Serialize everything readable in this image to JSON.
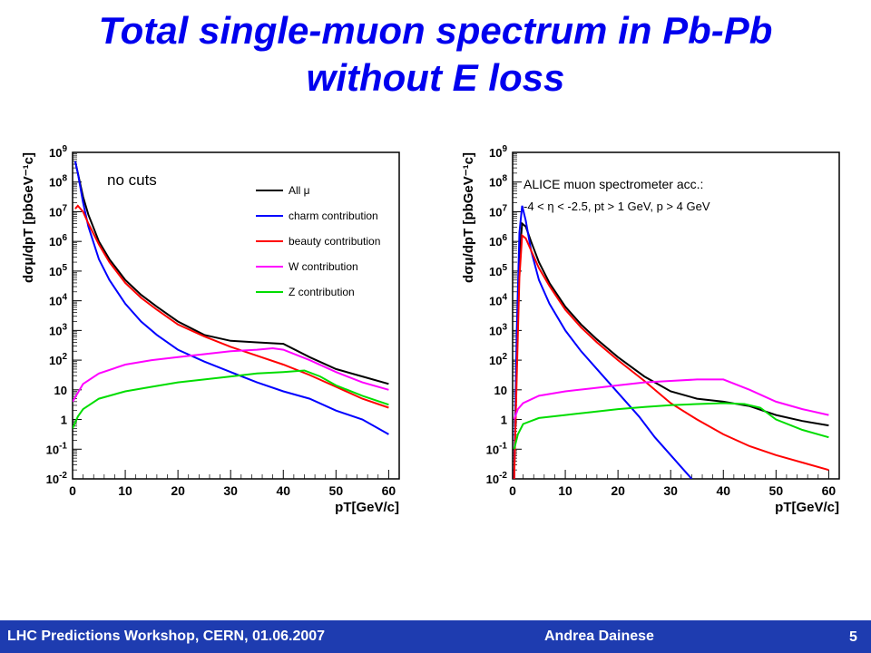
{
  "slide": {
    "title_line1": "Total single-muon spectrum in Pb-Pb",
    "title_line2": "without E loss",
    "page_number": "5",
    "colors": {
      "title": "#0000ee",
      "footer_bg": "#1e3cb0",
      "footer_text": "#ffffff"
    }
  },
  "footer": {
    "left": "LHC Predictions Workshop, CERN, 01.06.2007",
    "author": "Andrea Dainese"
  },
  "chart_data": [
    {
      "type": "line",
      "ylabel": "dσμ/dpT [pbGeV⁻¹c]",
      "xlabel": "pT[GeV/c]",
      "xlim": [
        0,
        62
      ],
      "ylim_log10": [
        -2,
        9
      ],
      "y_scale": "log",
      "xticks": [
        "0",
        "10",
        "20",
        "30",
        "40",
        "50",
        "60"
      ],
      "yticks": [
        "10^-2",
        "10^-1",
        "1",
        "10",
        "10^2",
        "10^3",
        "10^4",
        "10^5",
        "10^6",
        "10^7",
        "10^8",
        "10^9"
      ],
      "annotation": "no cuts",
      "legend_position": "top-right",
      "series": [
        {
          "name": "All μ",
          "color": "#000000",
          "x": [
            0.5,
            1,
            2,
            3,
            5,
            7,
            10,
            13,
            16,
            20,
            25,
            30,
            35,
            40,
            45,
            50,
            55,
            60
          ],
          "log10_y": [
            8.7,
            8.3,
            7.5,
            6.9,
            6.0,
            5.4,
            4.7,
            4.2,
            3.8,
            3.3,
            2.85,
            2.65,
            2.6,
            2.55,
            2.1,
            1.7,
            1.45,
            1.2
          ]
        },
        {
          "name": "charm contribution",
          "color": "#0000ff",
          "x": [
            0.5,
            1,
            2,
            3,
            5,
            7,
            10,
            13,
            16,
            20,
            25,
            30,
            35,
            40,
            45,
            50,
            55,
            60
          ],
          "log10_y": [
            8.7,
            8.3,
            7.3,
            6.5,
            5.4,
            4.7,
            3.9,
            3.3,
            2.85,
            2.35,
            1.95,
            1.6,
            1.25,
            0.95,
            0.7,
            0.3,
            0.0,
            -0.5
          ]
        },
        {
          "name": "beauty contribution",
          "color": "#ff0000",
          "x": [
            0.5,
            1,
            2,
            3,
            5,
            7,
            10,
            13,
            16,
            20,
            25,
            30,
            35,
            40,
            45,
            50,
            55,
            60
          ],
          "log10_y": [
            7.1,
            7.2,
            7.0,
            6.6,
            5.9,
            5.3,
            4.6,
            4.1,
            3.7,
            3.2,
            2.8,
            2.45,
            2.15,
            1.85,
            1.5,
            1.1,
            0.7,
            0.4
          ]
        },
        {
          "name": "W contribution",
          "color": "#ff00ff",
          "x": [
            0,
            1,
            2,
            5,
            10,
            15,
            20,
            25,
            30,
            35,
            38,
            40,
            45,
            50,
            55,
            60
          ],
          "log10_y": [
            0.6,
            0.9,
            1.2,
            1.55,
            1.85,
            2.0,
            2.1,
            2.2,
            2.3,
            2.35,
            2.4,
            2.35,
            2.0,
            1.6,
            1.25,
            1.0
          ]
        },
        {
          "name": "Z contribution",
          "color": "#00dd00",
          "x": [
            0,
            1,
            2,
            5,
            10,
            15,
            20,
            25,
            30,
            35,
            40,
            44,
            47,
            50,
            55,
            60
          ],
          "log10_y": [
            -0.3,
            0.1,
            0.35,
            0.7,
            0.95,
            1.1,
            1.25,
            1.35,
            1.45,
            1.55,
            1.6,
            1.65,
            1.45,
            1.15,
            0.8,
            0.5
          ]
        }
      ]
    },
    {
      "type": "line",
      "ylabel": "dσμ/dpT [pbGeV⁻¹c]",
      "xlabel": "pT[GeV/c]",
      "xlim": [
        0,
        62
      ],
      "ylim_log10": [
        -2,
        9
      ],
      "y_scale": "log",
      "xticks": [
        "0",
        "10",
        "20",
        "30",
        "40",
        "50",
        "60"
      ],
      "yticks": [
        "10^-2",
        "10^-1",
        "1",
        "10",
        "10^2",
        "10^3",
        "10^4",
        "10^5",
        "10^6",
        "10^7",
        "10^8",
        "10^9"
      ],
      "annotation": "ALICE muon spectrometer acc.:",
      "annotation_line2": "-4 < η < -2.5, pt > 1 GeV, p > 4 GeV",
      "legend_position": "none",
      "series": [
        {
          "name": "",
          "color": "#000000",
          "x": [
            0.3,
            0.8,
            1.3,
            1.8,
            2.5,
            3.5,
            5,
            7,
            10,
            13,
            16,
            20,
            25,
            30,
            35,
            40,
            45,
            50,
            55,
            60
          ],
          "log10_y": [
            -2,
            2.0,
            5.5,
            6.6,
            6.5,
            6.0,
            5.3,
            4.6,
            3.8,
            3.2,
            2.7,
            2.1,
            1.45,
            0.95,
            0.7,
            0.6,
            0.45,
            0.15,
            -0.05,
            -0.2
          ]
        },
        {
          "name": "",
          "color": "#0000ff",
          "x": [
            0.3,
            0.8,
            1.3,
            1.8,
            2.5,
            3.5,
            5,
            7,
            10,
            13,
            16,
            20,
            24,
            27,
            30,
            32,
            34
          ],
          "log10_y": [
            -2,
            3.0,
            6.3,
            7.2,
            6.7,
            5.7,
            4.7,
            3.9,
            3.0,
            2.3,
            1.7,
            0.9,
            0.1,
            -0.6,
            -1.2,
            -1.6,
            -2.0
          ]
        },
        {
          "name": "",
          "color": "#ff0000",
          "x": [
            0.3,
            0.8,
            1.3,
            1.8,
            2.5,
            3.5,
            5,
            7,
            10,
            13,
            16,
            20,
            25,
            30,
            35,
            40,
            45,
            50,
            55,
            60
          ],
          "log10_y": [
            -2,
            1.5,
            4.8,
            6.2,
            6.1,
            5.7,
            5.1,
            4.5,
            3.7,
            3.1,
            2.6,
            2.0,
            1.3,
            0.55,
            0.0,
            -0.5,
            -0.9,
            -1.2,
            -1.45,
            -1.7
          ]
        },
        {
          "name": "",
          "color": "#ff00ff",
          "x": [
            0.3,
            1,
            2,
            5,
            10,
            15,
            20,
            25,
            30,
            35,
            40,
            45,
            50,
            55,
            60
          ],
          "log10_y": [
            0.0,
            0.35,
            0.55,
            0.8,
            0.95,
            1.05,
            1.15,
            1.25,
            1.3,
            1.35,
            1.35,
            1.0,
            0.6,
            0.35,
            0.15
          ]
        },
        {
          "name": "",
          "color": "#00dd00",
          "x": [
            0.3,
            1,
            2,
            5,
            10,
            15,
            20,
            25,
            30,
            35,
            40,
            44,
            47,
            50,
            55,
            60
          ],
          "log10_y": [
            -1.0,
            -0.5,
            -0.15,
            0.05,
            0.15,
            0.25,
            0.35,
            0.42,
            0.48,
            0.52,
            0.55,
            0.52,
            0.4,
            0.0,
            -0.35,
            -0.6
          ]
        }
      ]
    }
  ]
}
